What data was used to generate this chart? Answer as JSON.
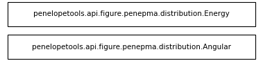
{
  "boxes": [
    {
      "label": "penelopetools.api.figure.penepma.distribution.Energy"
    },
    {
      "label": "penelopetools.api.figure.penepma.distribution.Angular"
    }
  ],
  "bg_color": "#ffffff",
  "border_color": "#000000",
  "text_color": "#000000",
  "font_size": 7.5,
  "font_family": "DejaVu Sans"
}
